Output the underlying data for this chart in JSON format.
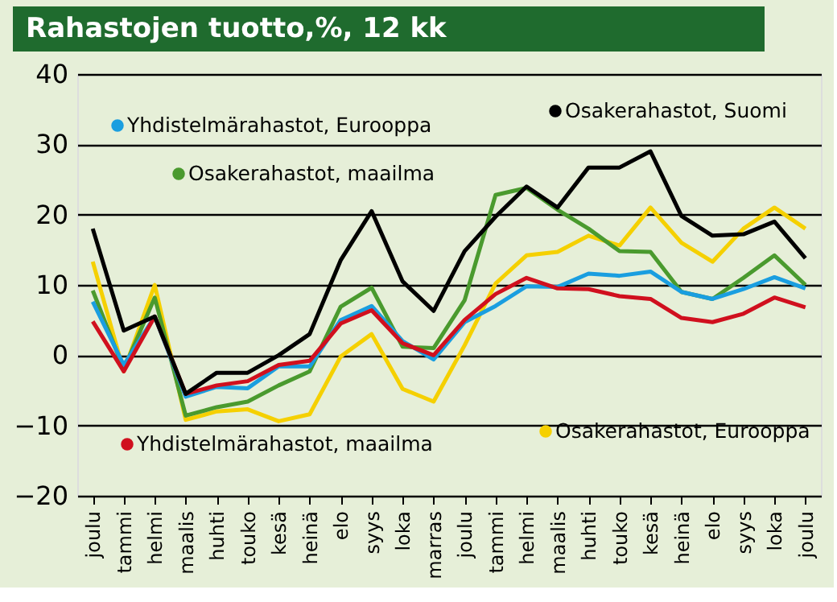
{
  "chart_data": {
    "type": "line",
    "title": "Rahastojen tuotto,%, 12 kk",
    "categories": [
      "joulu",
      "tammi",
      "helmi",
      "maalis",
      "huhti",
      "touko",
      "kesä",
      "heinä",
      "elo",
      "syys",
      "loka",
      "marras",
      "joulu",
      "tammi",
      "helmi",
      "maalis",
      "huhti",
      "touko",
      "kesä",
      "heinä",
      "elo",
      "syys",
      "loka",
      "joulu"
    ],
    "series": [
      {
        "name": "Osakerahastot, Eurooppa",
        "color": "#f5d000",
        "values": [
          13.3,
          -2.3,
          10,
          -9.2,
          -8,
          -7.7,
          -9.4,
          -8.4,
          -0.2,
          3,
          -4.8,
          -6.6,
          1.4,
          10.2,
          14.2,
          14.7,
          17,
          15.6,
          21,
          16,
          13.3,
          18,
          21,
          18
        ]
      },
      {
        "name": "Osakerahastot, maailma",
        "color": "#4a9a2e",
        "values": [
          9.2,
          -2,
          8.2,
          -8.6,
          -7.4,
          -6.6,
          -4.3,
          -2.3,
          6.9,
          9.6,
          1.2,
          1,
          7.8,
          22.8,
          23.8,
          20.7,
          18,
          14.8,
          14.7,
          9,
          8,
          11,
          14.2,
          10
        ]
      },
      {
        "name": "Yhdistelmärahastot, Eurooppa",
        "color": "#1a9ee0",
        "values": [
          7.6,
          -1.4,
          5.5,
          -5.9,
          -4.5,
          -4.7,
          -1.6,
          -1.6,
          5,
          7,
          2,
          -0.6,
          4.7,
          7,
          9.8,
          9.7,
          11.6,
          11.3,
          11.9,
          9,
          8,
          9.4,
          11.1,
          9.5
        ]
      },
      {
        "name": "Yhdistelmärahastot, maailma",
        "color": "#d0101e",
        "values": [
          4.8,
          -2.3,
          5.5,
          -5.5,
          -4.3,
          -3.7,
          -1.4,
          -0.8,
          4.5,
          6.4,
          1.7,
          0,
          5,
          8.7,
          11,
          9.5,
          9.4,
          8.4,
          8,
          5.3,
          4.7,
          5.9,
          8.2,
          6.8
        ]
      },
      {
        "name": "Osakerahastot, Suomi",
        "color": "#000000",
        "values": [
          18,
          3.5,
          5.5,
          -5.5,
          -2.5,
          -2.5,
          0,
          3,
          13.5,
          20.5,
          10.5,
          6.3,
          14.8,
          19.7,
          24,
          21,
          26.7,
          26.7,
          29,
          19.8,
          17,
          17.2,
          19,
          13.8
        ]
      }
    ],
    "ylim": [
      -20,
      40
    ],
    "yticks": [
      -20,
      -10,
      0,
      10,
      20,
      30,
      40
    ],
    "grid": "y",
    "legend": "right",
    "marker": "none",
    "line_style": "solid"
  }
}
